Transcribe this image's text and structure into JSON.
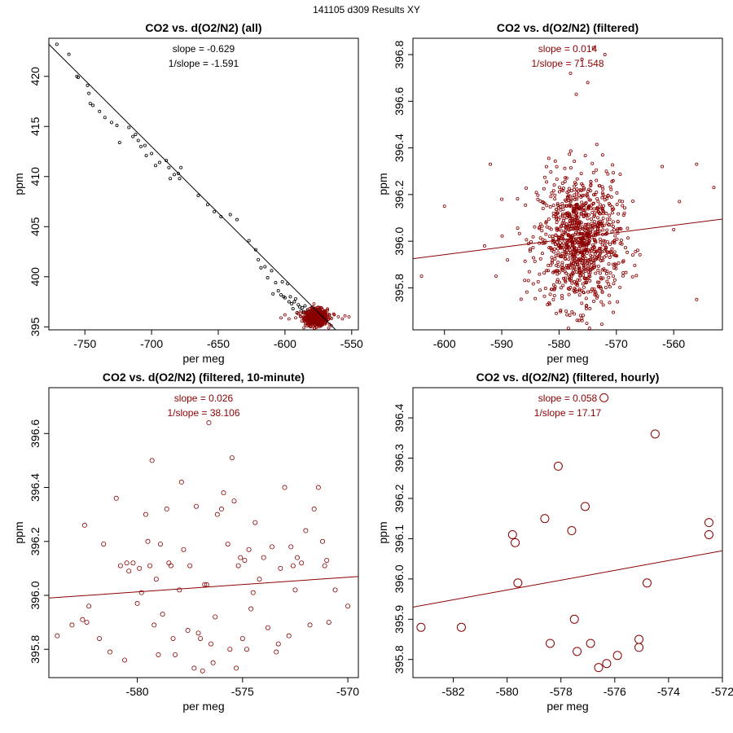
{
  "figure_title": "141105   d309   Results XY",
  "colors": {
    "black": "#000000",
    "red": "#8b0000"
  },
  "chart_data": [
    {
      "type": "scatter",
      "title": "CO2 vs. d(O2/N2) (all)",
      "xlabel": "per meg",
      "ylabel": "ppm",
      "xlim": [
        -777,
        -545
      ],
      "ylim": [
        394.7,
        423.8
      ],
      "xticks": [
        -750,
        -700,
        -650,
        -600,
        -550
      ],
      "xtick_labels": [
        "-750",
        "-700",
        "-650",
        "-600",
        "-550"
      ],
      "yticks": [
        395,
        400,
        405,
        410,
        415,
        420
      ],
      "ytick_labels": [
        "395",
        "400",
        "405",
        "410",
        "415",
        "420"
      ],
      "annotations": [
        "slope = -0.629",
        "1/slope = -1.591"
      ],
      "fit_line": {
        "slope": -0.629,
        "points": [
          [
            -777,
            423.2
          ],
          [
            -562,
            394.7
          ]
        ]
      },
      "series": [
        {
          "color": "#000000",
          "marker_size": 1.6,
          "x": [
            -771,
            -762,
            -756,
            -755,
            -748,
            -746,
            -747,
            -744,
            -739,
            -735,
            -730,
            -726,
            -724,
            -717,
            -714,
            -712,
            -710,
            -708,
            -705,
            -704,
            -700,
            -697,
            -694,
            -689,
            -687,
            -686,
            -683,
            -680,
            -679,
            -678,
            -665,
            -658,
            -653,
            -648,
            -641,
            -636,
            -627,
            -622,
            -620,
            -618,
            -615,
            -613,
            -610,
            -609,
            -607,
            -605,
            -603,
            -602,
            -601,
            -600,
            -598,
            -597,
            -596,
            -595,
            -594,
            -593,
            -592,
            -591,
            -590,
            -589,
            -588,
            -587,
            -586,
            -585,
            -584,
            -583,
            -582,
            -581,
            -580
          ],
          "y": [
            423.2,
            422.2,
            420.0,
            419.9,
            419.1,
            417.3,
            418.3,
            417.1,
            416.5,
            415.9,
            415.4,
            415.1,
            413.4,
            414.9,
            414.0,
            414.2,
            413.6,
            413.0,
            413.1,
            412.1,
            412.3,
            411.1,
            411.4,
            411.6,
            410.9,
            409.8,
            410.2,
            410.3,
            409.8,
            410.9,
            408.1,
            407.2,
            406.5,
            406.0,
            406.2,
            405.7,
            403.6,
            402.7,
            401.7,
            400.9,
            401.0,
            399.9,
            400.6,
            398.3,
            399.4,
            398.6,
            398.2,
            399.5,
            398.0,
            397.9,
            399.3,
            397.5,
            398.0,
            397.3,
            396.8,
            397.5,
            397.8,
            396.4,
            397.2,
            397.0,
            396.6,
            396.9,
            396.5,
            397.1,
            396.4,
            396.7,
            396.5,
            396.3,
            396.9
          ]
        },
        {
          "color": "#8b0000",
          "marker_size": 1.5,
          "cluster": {
            "x_center": -576.5,
            "x_spread": 7.5,
            "y_center": 395.95,
            "y_spread": 0.55,
            "count": 600
          },
          "x": [
            -603,
            -600,
            -597,
            -592,
            -590,
            -588,
            -586,
            -585,
            -583,
            -582,
            -581,
            -580,
            -579,
            -578,
            -577,
            -576,
            -575,
            -574,
            -573,
            -572,
            -571,
            -570,
            -568,
            -566,
            -563,
            -560,
            -557,
            -555,
            -552
          ],
          "y": [
            395.9,
            396.2,
            395.8,
            395.9,
            396.3,
            396.0,
            395.8,
            396.1,
            396.4,
            395.7,
            396.0,
            395.9,
            396.2,
            395.8,
            396.1,
            396.0,
            395.7,
            396.3,
            396.0,
            395.9,
            396.1,
            395.8,
            396.0,
            395.9,
            396.2,
            396.0,
            395.8,
            396.1,
            396.0
          ]
        }
      ]
    },
    {
      "type": "scatter",
      "title": "CO2 vs. d(O2/N2) (filtered)",
      "xlabel": "per meg",
      "ylabel": "ppm",
      "xlim": [
        -605.5,
        -551.5
      ],
      "ylim": [
        395.62,
        396.87
      ],
      "xticks": [
        -600,
        -590,
        -580,
        -570,
        -560
      ],
      "xtick_labels": [
        "-600",
        "-590",
        "-580",
        "-570",
        "-560"
      ],
      "yticks": [
        395.8,
        396.0,
        396.2,
        396.4,
        396.6,
        396.8
      ],
      "ytick_labels": [
        "395.8",
        "396.0",
        "396.2",
        "396.4",
        "396.6",
        "396.8"
      ],
      "annotations": [
        "slope = 0.014",
        "1/slope = 71.548"
      ],
      "fit_line": {
        "slope": 0.014,
        "points": [
          [
            -605.5,
            395.925
          ],
          [
            -551.5,
            396.095
          ]
        ]
      },
      "series": [
        {
          "color": "#8b0000",
          "marker_size": 1.6,
          "cluster": {
            "x_center": -576.5,
            "x_spread": 6.5,
            "y_center": 396.0,
            "y_spread": 0.19,
            "count": 1000
          },
          "x": [
            -604,
            -600,
            -593,
            -592,
            -591,
            -590,
            -589,
            -562,
            -560,
            -559,
            -556,
            -556,
            -553,
            -576,
            -574,
            -578,
            -572,
            -575,
            -577
          ],
          "y": [
            395.85,
            396.15,
            395.98,
            396.33,
            395.85,
            396.18,
            395.92,
            396.32,
            396.05,
            396.17,
            396.33,
            395.75,
            396.23,
            396.78,
            396.83,
            396.72,
            396.8,
            396.68,
            396.63
          ]
        }
      ]
    },
    {
      "type": "scatter",
      "title": "CO2 vs. d(O2/N2) (filtered, 10-minute)",
      "xlabel": "per meg",
      "ylabel": "ppm",
      "xlim": [
        -584.2,
        -569.5
      ],
      "ylim": [
        395.695,
        396.77
      ],
      "xticks": [
        -580,
        -575,
        -570
      ],
      "xtick_labels": [
        "-580",
        "-575",
        "-570"
      ],
      "yticks": [
        395.8,
        396.0,
        396.2,
        396.4,
        396.6
      ],
      "ytick_labels": [
        "395.8",
        "396.0",
        "396.2",
        "396.4",
        "396.6"
      ],
      "annotations": [
        "slope = 0.026",
        "1/slope = 38.106"
      ],
      "fit_line": {
        "slope": 0.026,
        "points": [
          [
            -584.2,
            395.99
          ],
          [
            -569.5,
            396.07
          ]
        ]
      },
      "series": [
        {
          "color": "#8b0000",
          "marker_size": 2.6,
          "x": [
            -583.8,
            -583.1,
            -582.6,
            -582.5,
            -582.4,
            -582.3,
            -581.8,
            -581.6,
            -581.3,
            -581.0,
            -580.8,
            -580.6,
            -580.5,
            -580.4,
            -580.2,
            -580.0,
            -579.9,
            -579.8,
            -579.6,
            -579.5,
            -579.4,
            -579.3,
            -579.2,
            -579.1,
            -579.0,
            -578.9,
            -578.8,
            -578.6,
            -578.5,
            -578.4,
            -578.3,
            -578.2,
            -578.0,
            -577.9,
            -577.8,
            -577.6,
            -577.5,
            -577.3,
            -577.2,
            -577.1,
            -577.0,
            -576.9,
            -576.8,
            -576.7,
            -576.6,
            -576.5,
            -576.4,
            -576.3,
            -576.2,
            -576.0,
            -575.9,
            -575.7,
            -575.6,
            -575.5,
            -575.4,
            -575.3,
            -575.2,
            -575.1,
            -575.0,
            -574.9,
            -574.8,
            -574.7,
            -574.6,
            -574.5,
            -574.4,
            -574.2,
            -574.0,
            -573.8,
            -573.6,
            -573.4,
            -573.3,
            -573.2,
            -573.0,
            -572.8,
            -572.7,
            -572.6,
            -572.5,
            -572.4,
            -572.2,
            -572.0,
            -571.8,
            -571.6,
            -571.4,
            -571.2,
            -571.1,
            -571.0,
            -570.9,
            -570.6,
            -570.0
          ],
          "y": [
            395.85,
            395.89,
            395.91,
            396.26,
            395.9,
            395.96,
            395.84,
            396.19,
            395.79,
            396.36,
            396.11,
            395.76,
            396.12,
            396.09,
            396.12,
            395.97,
            396.1,
            396.01,
            396.3,
            396.2,
            396.11,
            396.5,
            395.89,
            396.06,
            395.78,
            396.19,
            395.93,
            396.32,
            396.12,
            396.11,
            395.84,
            395.78,
            396.02,
            396.42,
            396.17,
            395.87,
            396.11,
            395.73,
            396.33,
            395.86,
            395.84,
            395.72,
            396.04,
            396.04,
            396.64,
            395.82,
            395.75,
            395.92,
            396.3,
            396.32,
            396.38,
            396.19,
            395.8,
            396.51,
            396.35,
            395.73,
            396.11,
            396.14,
            395.84,
            396.13,
            395.8,
            396.17,
            395.95,
            396.01,
            396.27,
            396.06,
            396.14,
            395.88,
            396.18,
            395.79,
            395.82,
            396.1,
            396.4,
            395.85,
            396.18,
            396.11,
            396.02,
            396.14,
            396.12,
            396.24,
            395.89,
            396.32,
            396.4,
            396.2,
            396.11,
            396.13,
            395.9,
            396.02,
            395.96
          ]
        }
      ]
    },
    {
      "type": "scatter",
      "title": "CO2 vs. d(O2/N2) (filtered, hourly)",
      "xlabel": "per meg",
      "ylabel": "ppm",
      "xlim": [
        -583.5,
        -572.0
      ],
      "ylim": [
        395.755,
        396.475
      ],
      "xticks": [
        -582,
        -580,
        -578,
        -576,
        -574,
        -572
      ],
      "xtick_labels": [
        "-582",
        "-580",
        "-578",
        "-576",
        "-574",
        "-572"
      ],
      "yticks": [
        395.8,
        395.9,
        396.0,
        396.1,
        396.2,
        396.3,
        396.4
      ],
      "ytick_labels": [
        "395.8",
        "395.9",
        "396.0",
        "396.1",
        "396.2",
        "396.3",
        "396.4"
      ],
      "annotations": [
        "slope = 0.058",
        "1/slope = 17.17"
      ],
      "fit_line": {
        "slope": 0.058,
        "points": [
          [
            -583.5,
            395.93
          ],
          [
            -572.0,
            396.07
          ]
        ]
      },
      "series": [
        {
          "color": "#8b0000",
          "marker_size": 5.0,
          "x": [
            -583.2,
            -581.7,
            -579.8,
            -579.7,
            -579.6,
            -578.6,
            -578.4,
            -578.1,
            -577.6,
            -577.5,
            -577.4,
            -577.1,
            -576.9,
            -576.6,
            -576.4,
            -576.3,
            -575.9,
            -575.1,
            -575.1,
            -574.8,
            -574.5,
            -572.5,
            -572.5
          ],
          "y": [
            395.88,
            395.88,
            396.11,
            396.09,
            395.99,
            396.15,
            395.84,
            396.28,
            396.12,
            395.9,
            395.82,
            396.18,
            395.84,
            395.78,
            396.45,
            395.79,
            395.81,
            395.83,
            395.85,
            395.99,
            396.36,
            396.14,
            396.11
          ]
        }
      ]
    }
  ]
}
